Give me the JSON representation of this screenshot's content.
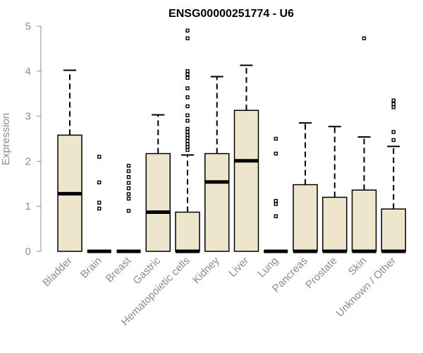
{
  "chart_data": {
    "type": "boxplot",
    "title": "ENSG00000251774 - U6",
    "xlabel": "",
    "ylabel": "Expression",
    "ylim": [
      0,
      5
    ],
    "yticks": [
      0,
      1,
      2,
      3,
      4,
      5
    ],
    "box_fill": "#ede6cc",
    "outline_color": "#000000",
    "axis_color": "#8c8c8c",
    "categories": [
      "Bladder",
      "Brain",
      "Breast",
      "Gastric",
      "Hematopoietic cells",
      "Kidney",
      "Liver",
      "Lung",
      "Pancreas",
      "Prostate",
      "Skin",
      "Unknown / Other"
    ],
    "boxes": [
      {
        "min": 0,
        "q1": 0,
        "median": 1.28,
        "q3": 2.58,
        "max": 4.02,
        "outliers": []
      },
      {
        "min": 0,
        "q1": 0,
        "median": 0,
        "q3": 0,
        "max": 0,
        "outliers": [
          0.95,
          1.08,
          1.53,
          2.1
        ]
      },
      {
        "min": 0,
        "q1": 0,
        "median": 0,
        "q3": 0,
        "max": 0,
        "outliers": [
          0.9,
          1.17,
          1.27,
          1.4,
          1.52,
          1.65,
          1.78,
          1.9
        ]
      },
      {
        "min": 0,
        "q1": 0,
        "median": 0.87,
        "q3": 2.17,
        "max": 3.03,
        "outliers": []
      },
      {
        "min": 0,
        "q1": 0,
        "median": 0,
        "q3": 0.87,
        "max": 2.14,
        "outliers": [
          2.25,
          2.32,
          2.38,
          2.45,
          2.52,
          2.58,
          2.65,
          2.72,
          2.9,
          3.02,
          3.22,
          3.42,
          3.62,
          3.85,
          3.93,
          4.0,
          4.73,
          4.9
        ]
      },
      {
        "min": 0,
        "q1": 0,
        "median": 1.54,
        "q3": 2.17,
        "max": 3.88,
        "outliers": []
      },
      {
        "min": 0,
        "q1": 0,
        "median": 2.01,
        "q3": 3.13,
        "max": 4.13,
        "outliers": []
      },
      {
        "min": 0,
        "q1": 0,
        "median": 0,
        "q3": 0,
        "max": 0,
        "outliers": [
          0.78,
          1.05,
          1.12,
          2.17,
          2.5
        ]
      },
      {
        "min": 0,
        "q1": 0,
        "median": 0,
        "q3": 1.48,
        "max": 2.85,
        "outliers": []
      },
      {
        "min": 0,
        "q1": 0,
        "median": 0,
        "q3": 1.2,
        "max": 2.77,
        "outliers": []
      },
      {
        "min": 0,
        "q1": 0,
        "median": 0,
        "q3": 1.36,
        "max": 2.54,
        "outliers": [
          4.73
        ]
      },
      {
        "min": 0,
        "q1": 0,
        "median": 0,
        "q3": 0.94,
        "max": 2.33,
        "outliers": [
          2.47,
          2.65,
          3.2,
          3.27,
          3.35
        ]
      }
    ]
  }
}
